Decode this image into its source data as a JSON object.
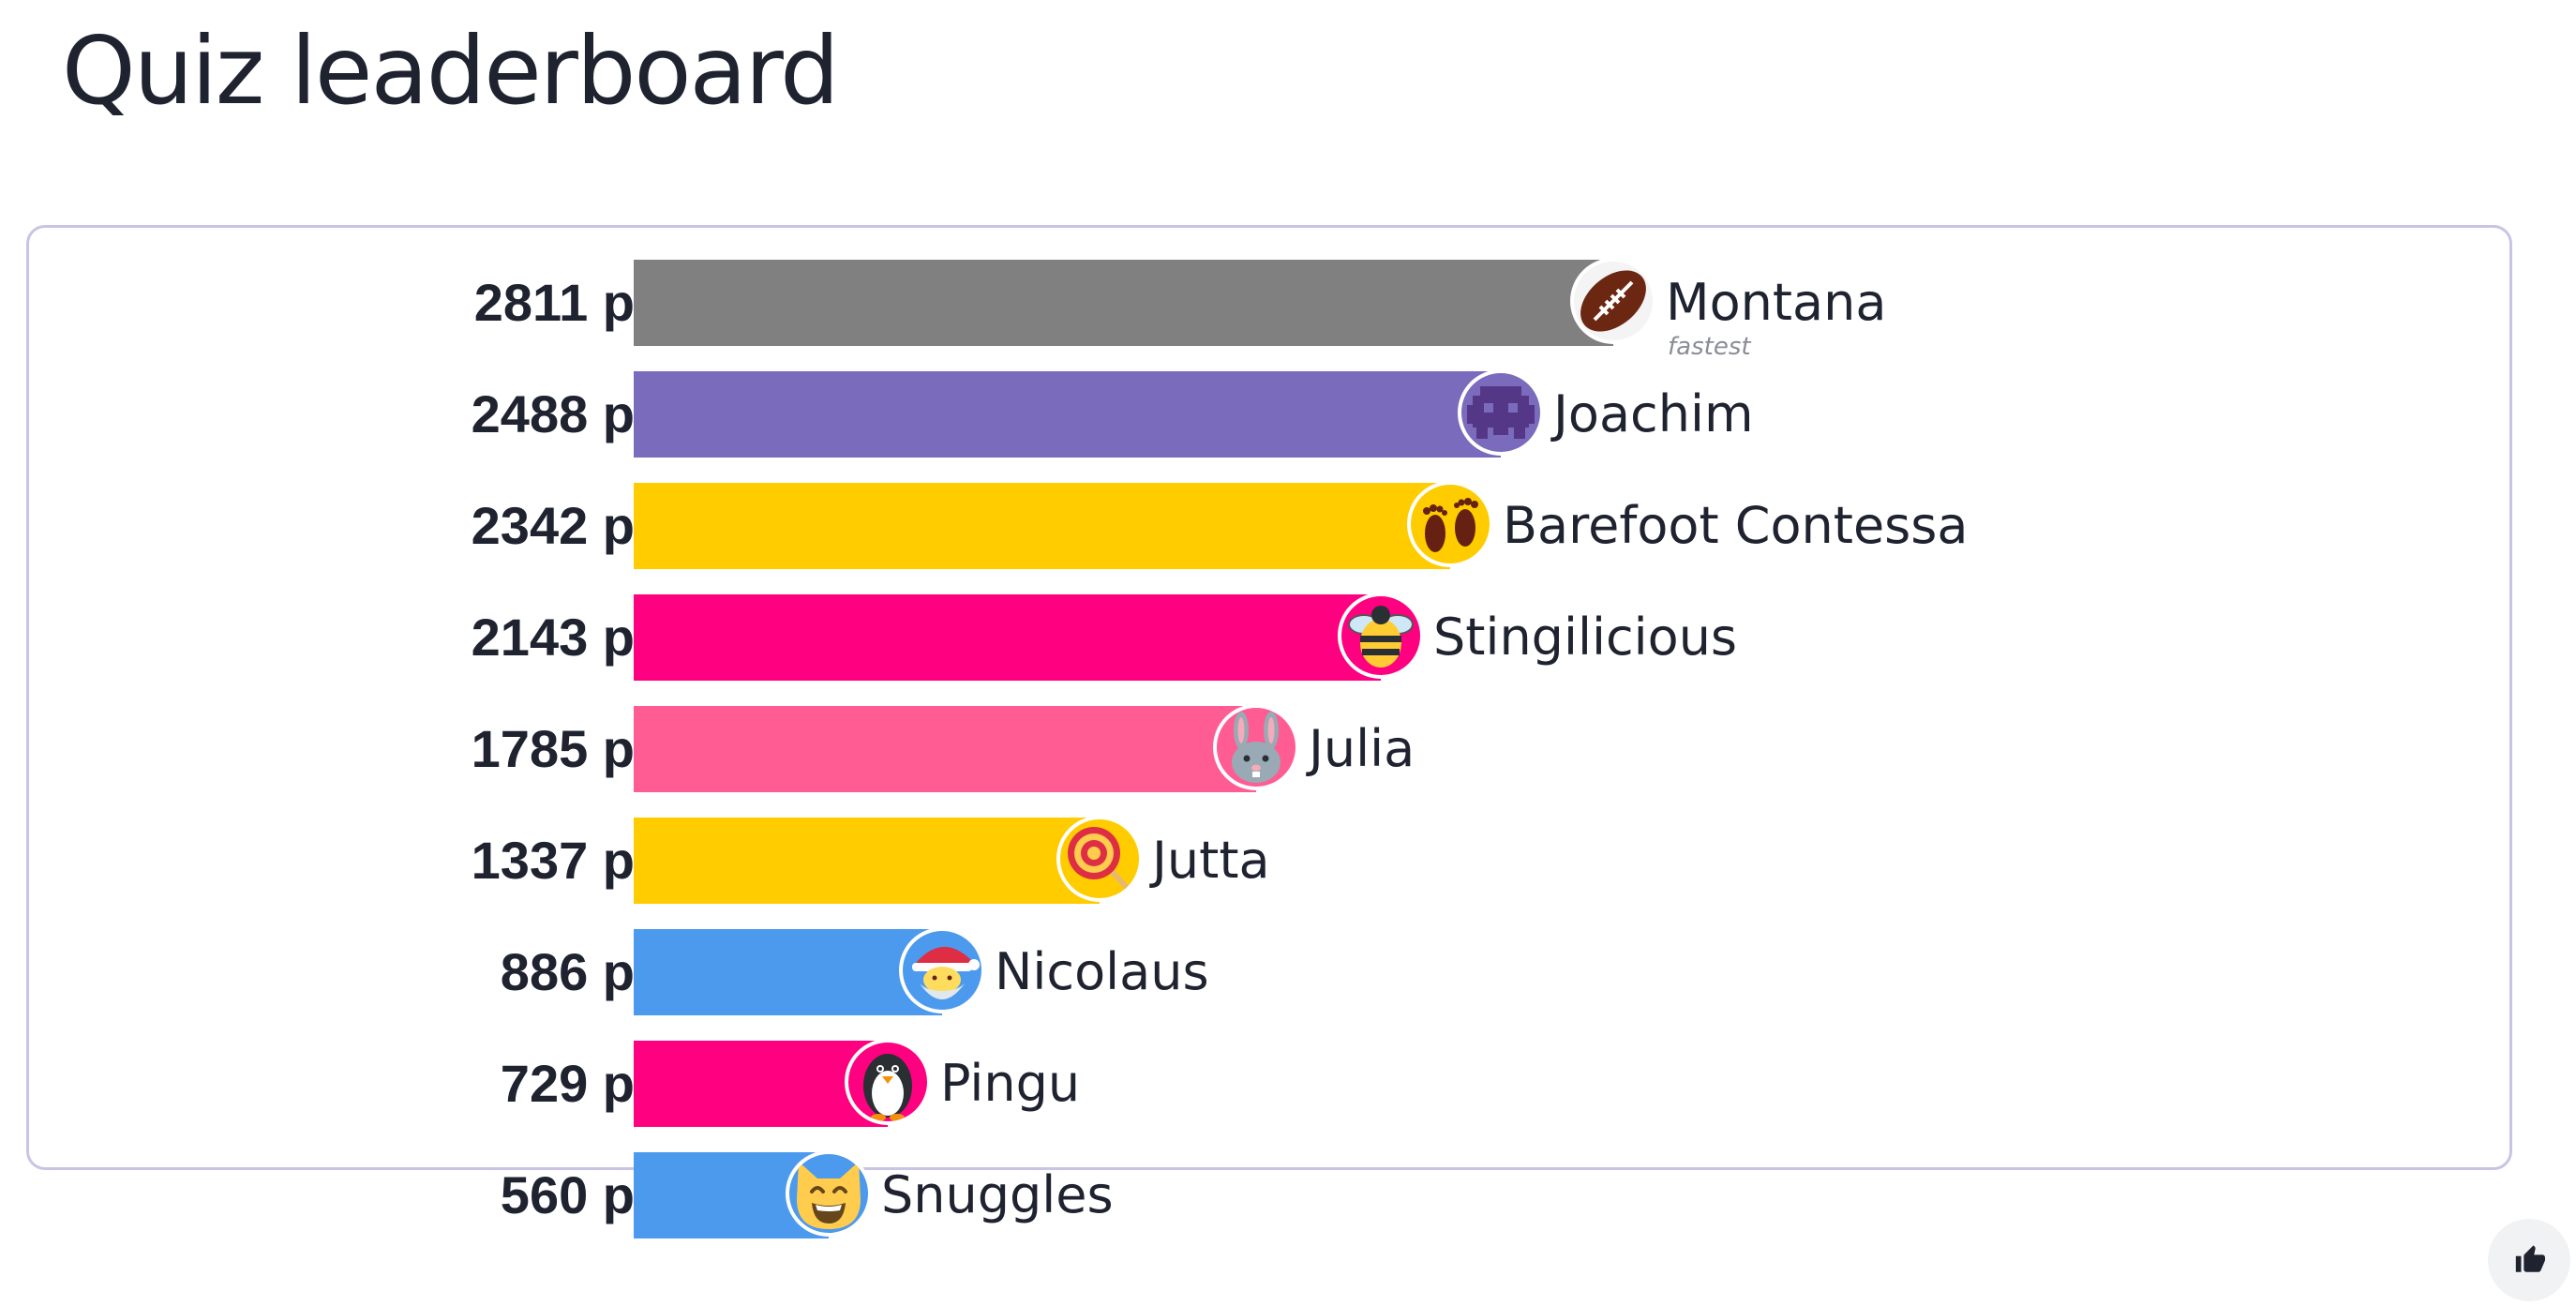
{
  "page": {
    "title": "Quiz leaderboard"
  },
  "leaderboard": {
    "max_score": 2811,
    "score_suffix": " p",
    "entries": [
      {
        "rank": 1,
        "score": 2811,
        "score_label": "2811 p",
        "name": "Montana",
        "tag": "fastest",
        "bar_color": "#808080",
        "avatar_bg": "#f4f4f4",
        "avatar_icon": "american-football-icon"
      },
      {
        "rank": 2,
        "score": 2488,
        "score_label": "2488 p",
        "name": "Joachim",
        "tag": "",
        "bar_color": "#7b6bbd",
        "avatar_bg": "#7b6bbd",
        "avatar_icon": "alien-monster-icon"
      },
      {
        "rank": 3,
        "score": 2342,
        "score_label": "2342 p",
        "name": "Barefoot Contessa",
        "tag": "",
        "bar_color": "#ffcc00",
        "avatar_bg": "#ffcc00",
        "avatar_icon": "footprints-icon"
      },
      {
        "rank": 4,
        "score": 2143,
        "score_label": "2143 p",
        "name": "Stingilicious",
        "tag": "",
        "bar_color": "#ff0080",
        "avatar_bg": "#ff0080",
        "avatar_icon": "bee-icon"
      },
      {
        "rank": 5,
        "score": 1785,
        "score_label": "1785 p",
        "name": "Julia",
        "tag": "",
        "bar_color": "#ff5c93",
        "avatar_bg": "#ff5c93",
        "avatar_icon": "rabbit-icon"
      },
      {
        "rank": 6,
        "score": 1337,
        "score_label": "1337 p",
        "name": "Jutta",
        "tag": "",
        "bar_color": "#ffcc00",
        "avatar_bg": "#ffcc00",
        "avatar_icon": "lollipop-icon"
      },
      {
        "rank": 7,
        "score": 886,
        "score_label": "886 p",
        "name": "Nicolaus",
        "tag": "",
        "bar_color": "#4c9aee",
        "avatar_bg": "#4c9aee",
        "avatar_icon": "santa-icon"
      },
      {
        "rank": 8,
        "score": 729,
        "score_label": "729 p",
        "name": "Pingu",
        "tag": "",
        "bar_color": "#ff0080",
        "avatar_bg": "#ff0080",
        "avatar_icon": "penguin-icon"
      },
      {
        "rank": 9,
        "score": 560,
        "score_label": "560 p",
        "name": "Snuggles",
        "tag": "",
        "bar_color": "#4c9aee",
        "avatar_bg": "#4c9aee",
        "avatar_icon": "smiling-cat-icon"
      }
    ]
  },
  "actions": {
    "like_icon": "thumbs-up-icon"
  }
}
